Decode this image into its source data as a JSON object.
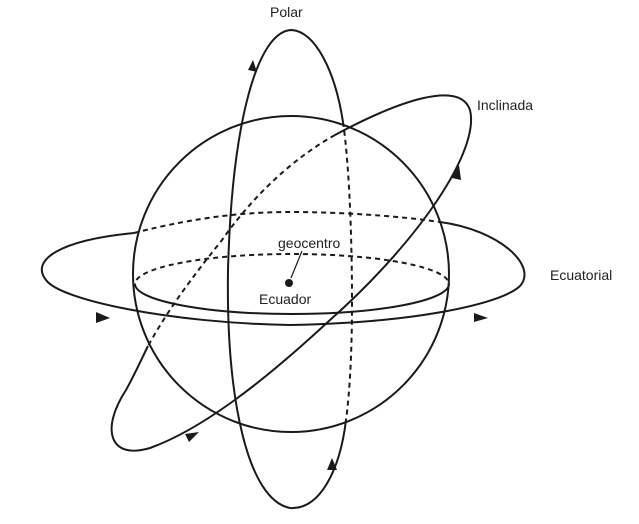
{
  "diagram": {
    "labels": {
      "polar": "Polar",
      "inclined": "Inclinada",
      "equatorial": "Ecuatorial",
      "center": "geocentro",
      "equator": "Ecuador"
    },
    "colors": {
      "stroke": "#1a1a1a",
      "background": "#ffffff"
    }
  }
}
